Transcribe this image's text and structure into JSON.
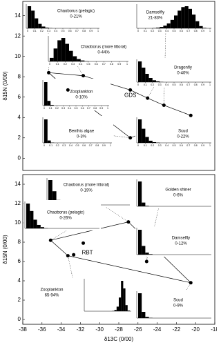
{
  "chart_data": [
    {
      "type": "scatter",
      "y_label": "δ15N (0/00)",
      "xlim": [
        -38,
        -18
      ],
      "ylim": [
        -1.2,
        15.4
      ],
      "yticks": [
        0,
        2,
        4,
        6,
        8,
        10,
        12,
        14
      ],
      "x": [
        -35.3,
        -31.7,
        -33.3,
        -26.8,
        -26.8,
        -25.0,
        -23.3,
        -20.5
      ],
      "y": [
        8.4,
        8.1,
        6.7,
        6.7,
        2.0,
        5.9,
        5.2,
        4.2
      ],
      "point_label": "GDS",
      "inset_bins": [
        0,
        0.05,
        0.1,
        0.15,
        0.2,
        0.25,
        0.3,
        0.35,
        0.4,
        0.45,
        0.5,
        0.55,
        0.6,
        0.65,
        0.7,
        0.75,
        0.8,
        0.85,
        0.9,
        0.95,
        1
      ],
      "inset_ylim": [
        0,
        100
      ],
      "inset_xticks": [
        0,
        0.1,
        0.2,
        0.3,
        0.4,
        0.5,
        0.6,
        0.7,
        0.8,
        0.9,
        1
      ],
      "insets": [
        {
          "label": "Chaoborus (pelagic)",
          "range": "0-21%",
          "counts": [
            100,
            80,
            45,
            20,
            8,
            3,
            1,
            0,
            0,
            0,
            0,
            0,
            0,
            0,
            0,
            0,
            0,
            0,
            0,
            0
          ]
        },
        {
          "label": "Chaoborus (more littoral)",
          "range": "0-44%",
          "counts": [
            15,
            55,
            90,
            100,
            75,
            45,
            22,
            10,
            4,
            1,
            0,
            0,
            0,
            0,
            0,
            0,
            0,
            0,
            0,
            0
          ]
        },
        {
          "label": "Damselfly",
          "range": "21-83%",
          "counts": [
            0,
            0,
            0,
            0,
            1,
            3,
            6,
            12,
            22,
            38,
            58,
            80,
            96,
            100,
            88,
            62,
            32,
            10,
            2,
            0
          ]
        },
        {
          "label": "Dragonfly",
          "range": "0-40%",
          "counts": [
            100,
            70,
            40,
            20,
            9,
            4,
            1,
            0,
            0,
            0,
            0,
            0,
            0,
            0,
            0,
            0,
            0,
            0,
            0,
            0
          ]
        },
        {
          "label": "Zooplankton",
          "range": "0-10%",
          "counts": [
            100,
            20,
            3,
            0,
            0,
            0,
            0,
            0,
            0,
            0,
            0,
            0,
            0,
            0,
            0,
            0,
            0,
            0,
            0,
            0
          ]
        },
        {
          "label": "Benthic algae",
          "range": "0-3%",
          "counts": [
            100,
            10,
            1,
            0,
            0,
            0,
            0,
            0,
            0,
            0,
            0,
            0,
            0,
            0,
            0,
            0,
            0,
            0,
            0,
            0
          ]
        },
        {
          "label": "Scud",
          "range": "0-22%",
          "counts": [
            100,
            60,
            25,
            9,
            3,
            1,
            0,
            0,
            0,
            0,
            0,
            0,
            0,
            0,
            0,
            0,
            0,
            0,
            0,
            0
          ]
        }
      ]
    },
    {
      "type": "scatter",
      "y_label": "δ15N (0/00)",
      "x_label": "δ13C (0/00)",
      "xlim": [
        -38,
        -18
      ],
      "xticks": [
        -38,
        -36,
        -34,
        -32,
        -30,
        -28,
        -26,
        -24,
        -22,
        -20,
        -18
      ],
      "ylim": [
        -0.5,
        15
      ],
      "yticks": [
        0,
        2,
        4,
        6,
        8,
        10,
        12,
        14
      ],
      "x": [
        -35.1,
        -27.0,
        -20.5,
        -33.3,
        -31.7,
        -32.7,
        -25.1
      ],
      "y": [
        8.2,
        10.1,
        3.8,
        6.6,
        7.9,
        6.7,
        6.0
      ],
      "point_label": "RBT",
      "inset_bins": [
        0,
        0.05,
        0.1,
        0.15,
        0.2,
        0.25,
        0.3,
        0.35,
        0.4,
        0.45,
        0.5,
        0.55,
        0.6,
        0.65,
        0.7,
        0.75,
        0.8,
        0.85,
        0.9,
        0.95,
        1
      ],
      "inset_ylim": [
        0,
        100
      ],
      "insets": [
        {
          "label": "Chaoborus (more littoral)",
          "range": "0-19%",
          "counts": [
            100,
            55,
            20,
            6,
            1,
            0,
            0,
            0,
            0,
            0,
            0,
            0,
            0,
            0,
            0,
            0,
            0,
            0,
            0,
            0
          ]
        },
        {
          "label": "Golden shiner",
          "range": "0-6%",
          "counts": [
            100,
            15,
            2,
            0,
            0,
            0,
            0,
            0,
            0,
            0,
            0,
            0,
            0,
            0,
            0,
            0,
            0,
            0,
            0,
            0
          ]
        },
        {
          "label": "Chaoborus (pelagic)",
          "range": "0-26%",
          "counts": [
            100,
            70,
            35,
            14,
            5,
            1,
            0,
            0,
            0,
            0,
            0,
            0,
            0,
            0,
            0,
            0,
            0,
            0,
            0,
            0
          ]
        },
        {
          "label": "Damselfly",
          "range": "0-12%",
          "counts": [
            100,
            35,
            8,
            2,
            0,
            0,
            0,
            0,
            0,
            0,
            0,
            0,
            0,
            0,
            0,
            0,
            0,
            0,
            0,
            0
          ]
        },
        {
          "label": "Zooplankton",
          "range": "65-94%",
          "counts": [
            0,
            0,
            0,
            0,
            0,
            0,
            0,
            0,
            0,
            0,
            0,
            0,
            1,
            4,
            15,
            45,
            100,
            75,
            20,
            2
          ]
        },
        {
          "label": "Scud",
          "range": "0-9%",
          "counts": [
            100,
            25,
            5,
            1,
            0,
            0,
            0,
            0,
            0,
            0,
            0,
            0,
            0,
            0,
            0,
            0,
            0,
            0,
            0,
            0
          ]
        }
      ]
    }
  ]
}
